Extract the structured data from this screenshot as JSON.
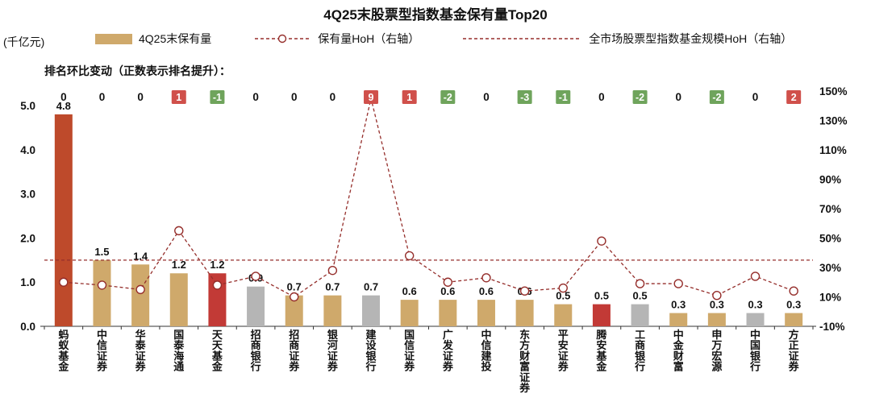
{
  "title": "4Q25末股票型指数基金保有量Top20",
  "axis_unit": "(千亿元)",
  "rank_note": "排名环比变动（正数表示排名提升）：",
  "legend": [
    {
      "label": "4Q25末保有量",
      "type": "bar"
    },
    {
      "label": "保有量HoH（右轴）",
      "type": "dashed-line-marker"
    },
    {
      "label": "全市场股票型指数基金规模HoH（右轴）",
      "type": "dashed-line"
    }
  ],
  "palette": {
    "tan": "#CFA96B",
    "brick": "#BE4A2B",
    "red": "#C23A36",
    "gray": "#B5B5B5",
    "line": "#952E2B",
    "badge_up": "#D0504B",
    "badge_down": "#6FA45C",
    "axis_text": "#111111"
  },
  "chart_data": {
    "type": "bar+line",
    "title": "4Q25末股票型指数基金保有量Top20",
    "categories": [
      "蚂蚁基金",
      "中信证券",
      "华泰证券",
      "国泰海通",
      "天天基金",
      "招商银行",
      "招商证券",
      "银河证券",
      "建设银行",
      "国信证券",
      "广发证券",
      "中信建投",
      "东方财富证券",
      "平安证券",
      "腾安基金",
      "工商银行",
      "中金财富",
      "申万宏源",
      "中国银行",
      "方正证券"
    ],
    "series": [
      {
        "name": "4Q25末保有量",
        "axis": "left",
        "unit": "千亿元",
        "values": [
          4.8,
          1.5,
          1.4,
          1.2,
          1.2,
          0.9,
          0.7,
          0.7,
          0.7,
          0.6,
          0.6,
          0.6,
          0.6,
          0.5,
          0.5,
          0.5,
          0.3,
          0.3,
          0.3,
          0.3
        ],
        "labels": [
          "4.8",
          "1.5",
          "1.4",
          "1.2",
          "1.2",
          "0.9",
          "0.7",
          "0.7",
          "0.7",
          "0.6",
          "0.6",
          "0.6",
          "0.6",
          "0.5",
          "0.5",
          "0.5",
          "0.3",
          "0.3",
          "0.3",
          "0.3"
        ],
        "color_keys": [
          "brick",
          "tan",
          "tan",
          "tan",
          "red",
          "gray",
          "tan",
          "tan",
          "gray",
          "tan",
          "tan",
          "tan",
          "tan",
          "tan",
          "red",
          "gray",
          "tan",
          "tan",
          "gray",
          "tan"
        ]
      },
      {
        "name": "保有量HoH（右轴）",
        "axis": "right",
        "unit": "%",
        "values": [
          20,
          18,
          15,
          55,
          18,
          24,
          10,
          28,
          145,
          38,
          20,
          23,
          14,
          16,
          48,
          19,
          19,
          11,
          24,
          14
        ]
      },
      {
        "name": "全市场股票型指数基金规模HoH（右轴）",
        "axis": "right",
        "unit": "%",
        "value": 35
      }
    ],
    "rank_changes": [
      0,
      0,
      0,
      1,
      -1,
      0,
      0,
      0,
      9,
      1,
      -2,
      0,
      -3,
      -1,
      0,
      -2,
      0,
      -2,
      0,
      2
    ],
    "left_axis": {
      "min": 0,
      "max": 5,
      "ticks": [
        "5.0",
        "4.0",
        "3.0",
        "2.0",
        "1.0",
        "0.0"
      ]
    },
    "right_axis": {
      "min": -10,
      "max": 150,
      "ticks": [
        "150%",
        "130%",
        "110%",
        "90%",
        "70%",
        "50%",
        "30%",
        "10%",
        "-10%"
      ]
    },
    "legend_position": "top",
    "grid": false
  }
}
